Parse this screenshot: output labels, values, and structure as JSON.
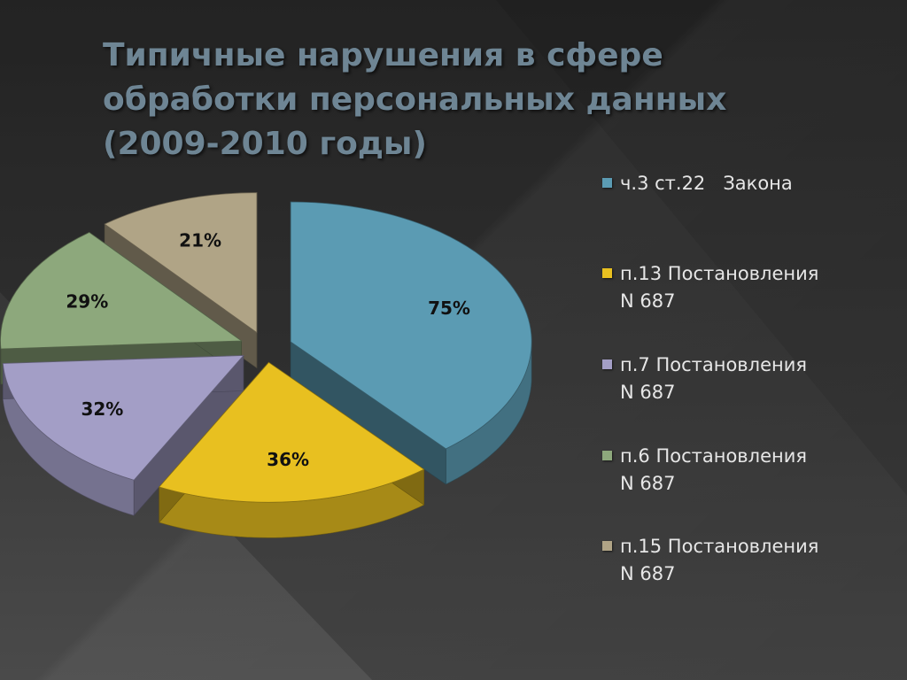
{
  "slide": {
    "title_lines": [
      "Типичные нарушения в сфере",
      "обработки персональных данных",
      "(2009-2010 годы)"
    ]
  },
  "chart_data": {
    "type": "pie",
    "title": "Типичные нарушения в сфере обработки персональных данных (2009-2010 годы)",
    "legend_position": "right",
    "exploded": true,
    "style": "3d",
    "slices": [
      {
        "name": "ч.3 ст.22   Закона",
        "value": 75,
        "label": "75%",
        "color": "#5b9bb3"
      },
      {
        "name": "п.13 Постановления N 687",
        "value": 36,
        "label": "36%",
        "color": "#e8c020"
      },
      {
        "name": "п.7 Постановления N 687",
        "value": 32,
        "label": "32%",
        "color": "#a39ec6"
      },
      {
        "name": "п.6 Постановления N 687",
        "value": 29,
        "label": "29%",
        "color": "#8da87c"
      },
      {
        "name": "п.15 Постановления N 687",
        "value": 21,
        "label": "21%",
        "color": "#b0a486"
      }
    ]
  },
  "legend": {
    "items": [
      {
        "text": "ч.3 ст.22   Закона",
        "color": "#5b9bb3"
      },
      {
        "text": "п.13 Постановления\nN 687",
        "color": "#e8c020"
      },
      {
        "text": "п.7 Постановления\nN 687",
        "color": "#a39ec6"
      },
      {
        "text": "п.6 Постановления\nN 687",
        "color": "#8da87c"
      },
      {
        "text": "п.15 Постановления\nN 687",
        "color": "#b0a486"
      }
    ]
  }
}
